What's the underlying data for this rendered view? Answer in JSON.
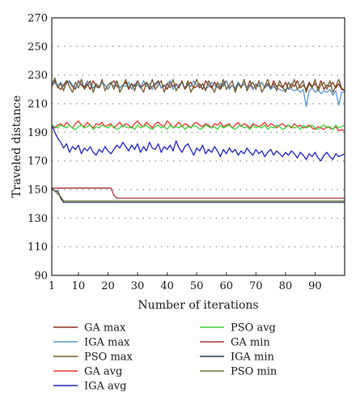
{
  "chart_data": {
    "type": "line",
    "title": "",
    "xlabel": "Number of iterations",
    "ylabel": "Traveled distance",
    "xlim": [
      1,
      100
    ],
    "ylim": [
      90,
      270
    ],
    "x_ticks": [
      1,
      10,
      20,
      30,
      40,
      50,
      60,
      70,
      80,
      90
    ],
    "y_ticks": [
      90,
      110,
      130,
      150,
      170,
      190,
      210,
      230,
      250,
      270
    ],
    "grid": "horizontal dotted",
    "legend_position": "bottom, two columns",
    "series": [
      {
        "name": "GA max",
        "color": "#8b2a1e",
        "values": [
          222,
          226,
          222,
          220,
          223,
          226,
          225,
          222,
          220,
          226,
          223,
          221,
          224,
          220,
          226,
          222,
          221,
          225,
          223,
          220,
          224,
          226,
          222,
          221,
          223,
          225,
          220,
          224,
          222,
          226,
          221,
          223,
          225,
          220,
          222,
          224,
          226,
          221,
          223,
          220,
          225,
          222,
          224,
          221,
          226,
          220,
          223,
          225,
          221,
          222,
          224,
          220,
          226,
          223,
          221,
          225,
          222,
          220,
          224,
          226,
          221,
          223,
          220,
          225,
          222,
          224,
          221,
          226,
          220,
          223,
          222,
          225,
          221,
          224,
          220,
          226,
          222,
          223,
          221,
          225,
          220,
          224,
          222,
          226,
          221,
          223,
          220,
          225,
          222,
          224,
          221,
          226,
          220,
          223,
          222,
          225,
          221,
          224,
          220,
          219
        ]
      },
      {
        "name": "IGA max",
        "color": "#5b93c8",
        "values": [
          226,
          224,
          223,
          225,
          222,
          224,
          226,
          223,
          221,
          225,
          224,
          222,
          226,
          223,
          221,
          224,
          222,
          225,
          223,
          220,
          224,
          222,
          226,
          221,
          223,
          222,
          225,
          220,
          224,
          223,
          221,
          226,
          222,
          224,
          220,
          223,
          225,
          221,
          222,
          224,
          226,
          220,
          223,
          222,
          225,
          221,
          224,
          222,
          226,
          223,
          221,
          224,
          220,
          222,
          225,
          223,
          221,
          224,
          222,
          226,
          220,
          223,
          221,
          225,
          222,
          224,
          221,
          223,
          220,
          224,
          222,
          225,
          221,
          223,
          220,
          222,
          221,
          220,
          219,
          220,
          221,
          220,
          219,
          220,
          218,
          220,
          208,
          219,
          221,
          218,
          220,
          217,
          219,
          218,
          220,
          216,
          219,
          209,
          218,
          218
        ]
      },
      {
        "name": "PSO max",
        "color": "#6b5a2c",
        "values": [
          222,
          228,
          221,
          224,
          219,
          226,
          222,
          218,
          225,
          221,
          227,
          220,
          223,
          226,
          218,
          224,
          221,
          227,
          219,
          223,
          225,
          220,
          226,
          218,
          222,
          227,
          221,
          224,
          219,
          226,
          222,
          218,
          225,
          221,
          227,
          220,
          223,
          226,
          218,
          224,
          221,
          227,
          219,
          223,
          225,
          220,
          226,
          218,
          222,
          227,
          221,
          224,
          219,
          226,
          222,
          218,
          225,
          221,
          227,
          220,
          223,
          226,
          218,
          224,
          221,
          227,
          219,
          223,
          225,
          220,
          226,
          218,
          222,
          227,
          221,
          224,
          219,
          226,
          222,
          218,
          225,
          221,
          227,
          220,
          223,
          226,
          218,
          224,
          221,
          227,
          219,
          223,
          225,
          220,
          226,
          218,
          222,
          227,
          221,
          219
        ]
      },
      {
        "name": "GA avg",
        "color": "#e0302a",
        "values": [
          194,
          193,
          195,
          196,
          194,
          197,
          195,
          193,
          196,
          198,
          195,
          194,
          197,
          195,
          193,
          196,
          195,
          197,
          194,
          195,
          196,
          193,
          195,
          197,
          194,
          196,
          195,
          193,
          196,
          198,
          195,
          194,
          197,
          195,
          193,
          196,
          197,
          195,
          194,
          198,
          196,
          193,
          195,
          197,
          194,
          196,
          195,
          193,
          196,
          197,
          195,
          194,
          196,
          195,
          193,
          196,
          195,
          197,
          194,
          195,
          196,
          193,
          195,
          197,
          194,
          196,
          195,
          193,
          196,
          195,
          194,
          195,
          197,
          194,
          196,
          195,
          193,
          195,
          196,
          194,
          195,
          193,
          196,
          194,
          195,
          193,
          194,
          195,
          193,
          192,
          194,
          193,
          192,
          194,
          193,
          192,
          194,
          191,
          192,
          191
        ]
      },
      {
        "name": "IGA avg",
        "color": "#1c1eb8",
        "values": [
          195,
          190,
          186,
          183,
          179,
          182,
          176,
          180,
          178,
          181,
          175,
          179,
          177,
          180,
          176,
          174,
          178,
          176,
          180,
          177,
          175,
          178,
          181,
          179,
          183,
          180,
          177,
          181,
          178,
          182,
          176,
          180,
          177,
          183,
          179,
          178,
          182,
          176,
          180,
          178,
          181,
          177,
          184,
          179,
          176,
          180,
          182,
          178,
          174,
          179,
          177,
          181,
          175,
          178,
          176,
          180,
          177,
          173,
          178,
          175,
          179,
          176,
          178,
          174,
          177,
          175,
          179,
          176,
          174,
          178,
          175,
          177,
          173,
          176,
          178,
          174,
          177,
          175,
          173,
          176,
          174,
          177,
          175,
          172,
          176,
          174,
          171,
          175,
          173,
          176,
          172,
          170,
          174,
          176,
          173,
          171,
          175,
          173,
          174,
          175
        ]
      },
      {
        "name": "PSO avg",
        "color": "#39d439",
        "values": [
          195,
          194,
          193,
          195,
          194,
          193,
          195,
          193,
          192,
          194,
          195,
          193,
          194,
          195,
          192,
          194,
          193,
          195,
          194,
          193,
          195,
          194,
          192,
          193,
          195,
          194,
          193,
          194,
          192,
          195,
          193,
          194,
          195,
          193,
          192,
          194,
          195,
          193,
          194,
          192,
          195,
          193,
          194,
          193,
          195,
          192,
          194,
          193,
          195,
          194,
          192,
          193,
          195,
          194,
          193,
          194,
          192,
          195,
          193,
          194,
          195,
          193,
          192,
          194,
          195,
          193,
          194,
          192,
          195,
          193,
          194,
          193,
          195,
          192,
          194,
          193,
          195,
          194,
          192,
          193,
          195,
          194,
          193,
          194,
          192,
          195,
          193,
          194,
          195,
          193,
          192,
          194,
          195,
          193,
          194,
          192,
          195,
          193,
          194,
          195
        ]
      },
      {
        "name": "GA min",
        "color": "#a03040",
        "values": [
          151,
          151,
          151,
          151,
          151,
          151,
          151,
          151,
          151,
          151,
          151,
          151,
          151,
          151,
          151,
          151,
          151,
          151,
          151,
          151,
          151,
          146,
          144,
          144,
          144,
          144,
          144,
          144,
          144,
          144,
          144,
          144,
          144,
          144,
          144,
          144,
          144,
          144,
          144,
          144,
          144,
          144,
          144,
          144,
          144,
          144,
          144,
          144,
          144,
          144,
          144,
          144,
          144,
          144,
          144,
          144,
          144,
          144,
          144,
          144,
          144,
          144,
          144,
          144,
          144,
          144,
          144,
          144,
          144,
          144,
          144,
          144,
          144,
          144,
          144,
          144,
          144,
          144,
          144,
          144,
          144,
          144,
          144,
          144,
          144,
          144,
          144,
          144,
          144,
          144,
          144,
          144,
          144,
          144,
          144,
          144,
          144,
          144,
          144,
          144
        ]
      },
      {
        "name": "IGA min",
        "color": "#203848",
        "values": [
          151,
          149,
          149,
          144,
          141,
          141,
          141,
          141,
          141,
          141,
          141,
          141,
          141,
          141,
          141,
          141,
          141,
          141,
          141,
          141,
          141,
          141,
          141,
          141,
          141,
          141,
          141,
          141,
          141,
          141,
          141,
          141,
          141,
          141,
          141,
          141,
          141,
          141,
          141,
          141,
          141,
          141,
          141,
          141,
          141,
          141,
          141,
          141,
          141,
          141,
          141,
          141,
          141,
          141,
          141,
          141,
          141,
          141,
          141,
          141,
          141,
          141,
          141,
          141,
          141,
          141,
          141,
          141,
          141,
          141,
          141,
          141,
          141,
          141,
          141,
          141,
          141,
          141,
          141,
          141,
          141,
          141,
          141,
          141,
          141,
          141,
          141,
          141,
          141,
          141,
          141,
          141,
          141,
          141,
          141,
          141,
          141,
          141,
          141,
          141
        ]
      },
      {
        "name": "PSO min",
        "color": "#6e6a3a",
        "values": [
          150,
          149,
          147,
          145,
          142,
          142,
          142,
          142,
          142,
          142,
          142,
          142,
          142,
          142,
          142,
          142,
          142,
          142,
          142,
          142,
          142,
          142,
          142,
          142,
          142,
          142,
          142,
          142,
          142,
          142,
          142,
          142,
          142,
          142,
          142,
          142,
          142,
          142,
          142,
          142,
          142,
          142,
          142,
          142,
          142,
          142,
          142,
          142,
          142,
          142,
          142,
          142,
          142,
          142,
          142,
          142,
          142,
          142,
          142,
          142,
          142,
          142,
          142,
          142,
          142,
          142,
          142,
          142,
          142,
          142,
          142,
          142,
          142,
          142,
          142,
          142,
          142,
          142,
          142,
          142,
          142,
          142,
          142,
          142,
          142,
          142,
          142,
          142,
          142,
          142,
          142,
          142,
          142,
          142,
          142,
          142,
          142,
          142,
          142,
          142
        ]
      }
    ]
  }
}
